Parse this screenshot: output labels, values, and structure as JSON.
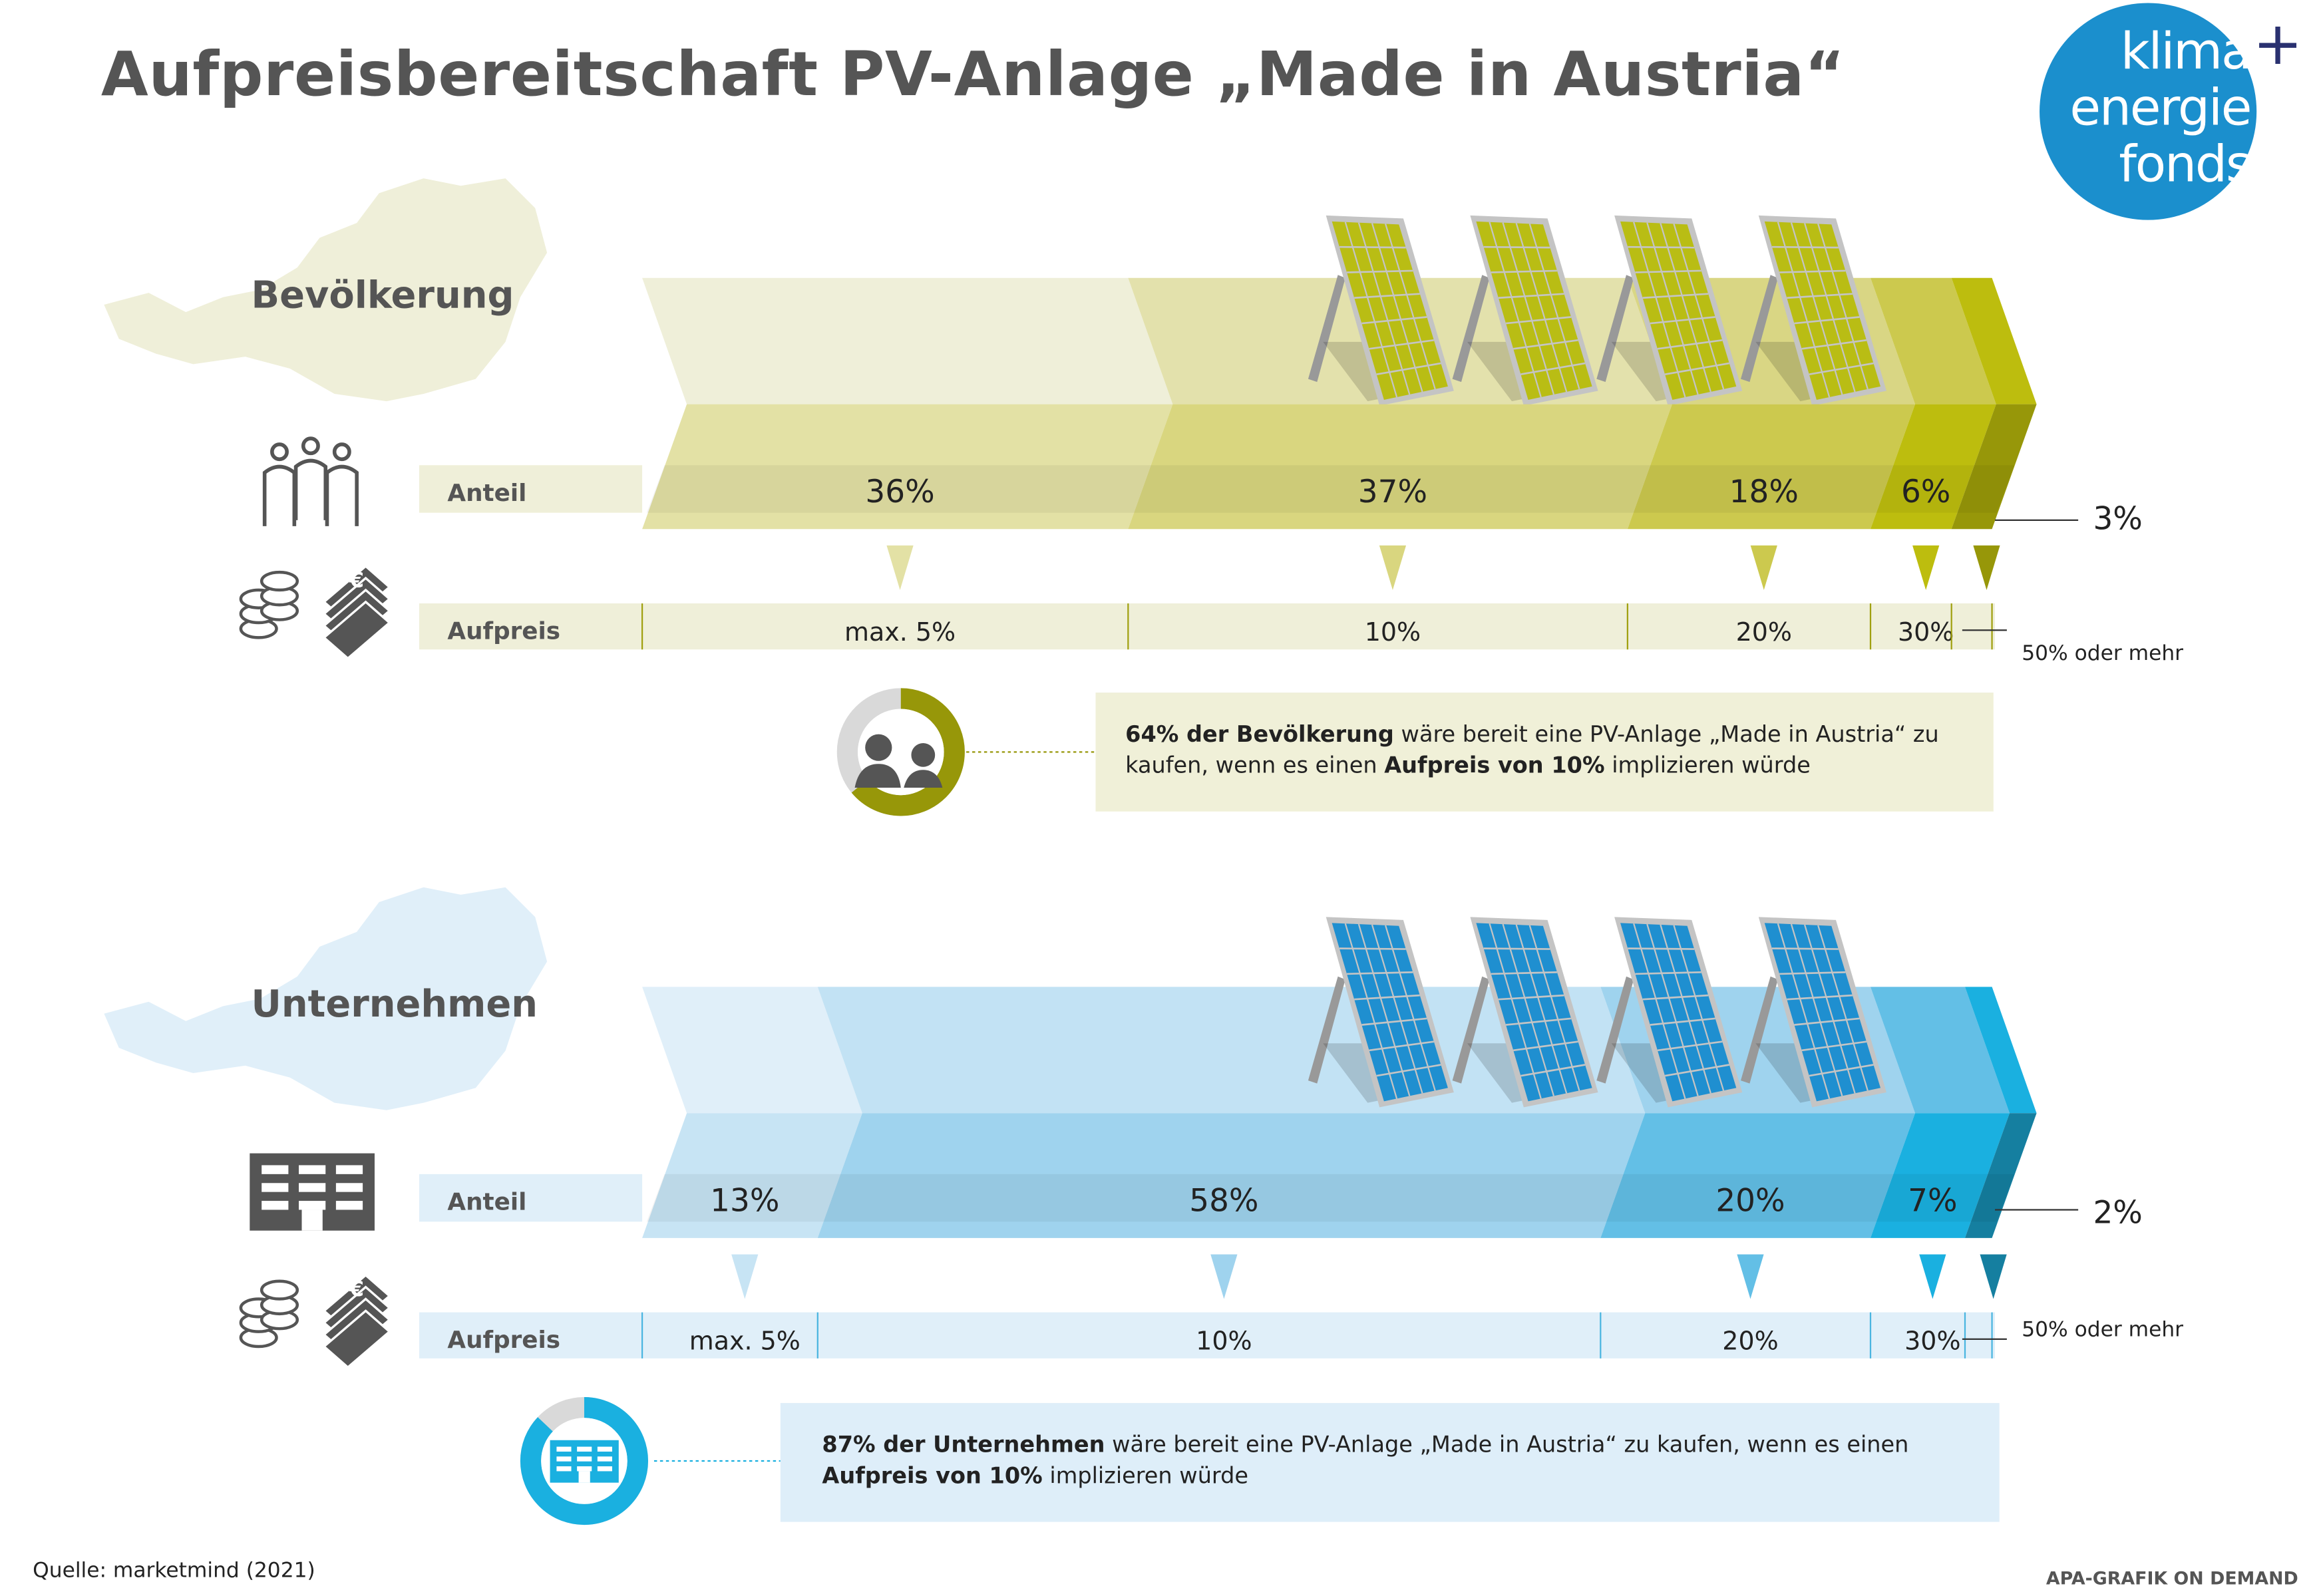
{
  "title": "Aufpreisbereitschaft PV-Anlage „Made in Austria“",
  "logo": {
    "line1": "klima",
    "line2": "energie",
    "line3": "fonds",
    "plus": "+"
  },
  "source": "Quelle: marketmind (2021)",
  "credit": "APA-GRAFIK ON DEMAND",
  "row_labels": {
    "share": "Anteil",
    "premium": "Aufpreis"
  },
  "info": [
    {
      "bold1": "64% der Bevölkerung",
      "text1": " wäre bereit eine PV-Anlage „Made in Austria“ zu kaufen, wenn es einen ",
      "bold2": "Aufpreis von 10%",
      "text2": " implizieren würde",
      "donut_percent": 64
    },
    {
      "bold1": "87% der Unternehmen",
      "text1": " wäre bereit eine PV-Anlage „Made in Austria“ zu kaufen, wenn es einen ",
      "bold2": "Aufpreis von 10%",
      "text2": " implizieren würde",
      "donut_percent": 87
    }
  ],
  "chart_data": [
    {
      "type": "bar",
      "title": "Bevölkerung",
      "categories": [
        "max. 5%",
        "10%",
        "20%",
        "30%",
        "50% oder mehr"
      ],
      "values": [
        36,
        37,
        18,
        6,
        3
      ],
      "value_labels": [
        "36%",
        "37%",
        "18%",
        "6%",
        "3%"
      ],
      "unit": "%",
      "colors_top": [
        "#efefd9",
        "#e3e1ac",
        "#d9d684",
        "#ccc94e",
        "#bdbd0e"
      ],
      "colors_front": [
        "#e3e1a5",
        "#d9d67f",
        "#ccc94e",
        "#bdbd0e",
        "#979709"
      ]
    },
    {
      "type": "bar",
      "title": "Unternehmen",
      "categories": [
        "max. 5%",
        "10%",
        "20%",
        "30%",
        "50% oder mehr"
      ],
      "values": [
        13,
        58,
        20,
        7,
        2
      ],
      "value_labels": [
        "13%",
        "58%",
        "20%",
        "7%",
        "2%"
      ],
      "unit": "%",
      "colors_top": [
        "#e0eff9",
        "#c2e2f4",
        "#9fd3ee",
        "#63bfe6",
        "#1ab0e0"
      ],
      "colors_front": [
        "#c7e4f4",
        "#9fd3ee",
        "#63bfe6",
        "#1ab0e0",
        "#157fa0"
      ]
    }
  ]
}
